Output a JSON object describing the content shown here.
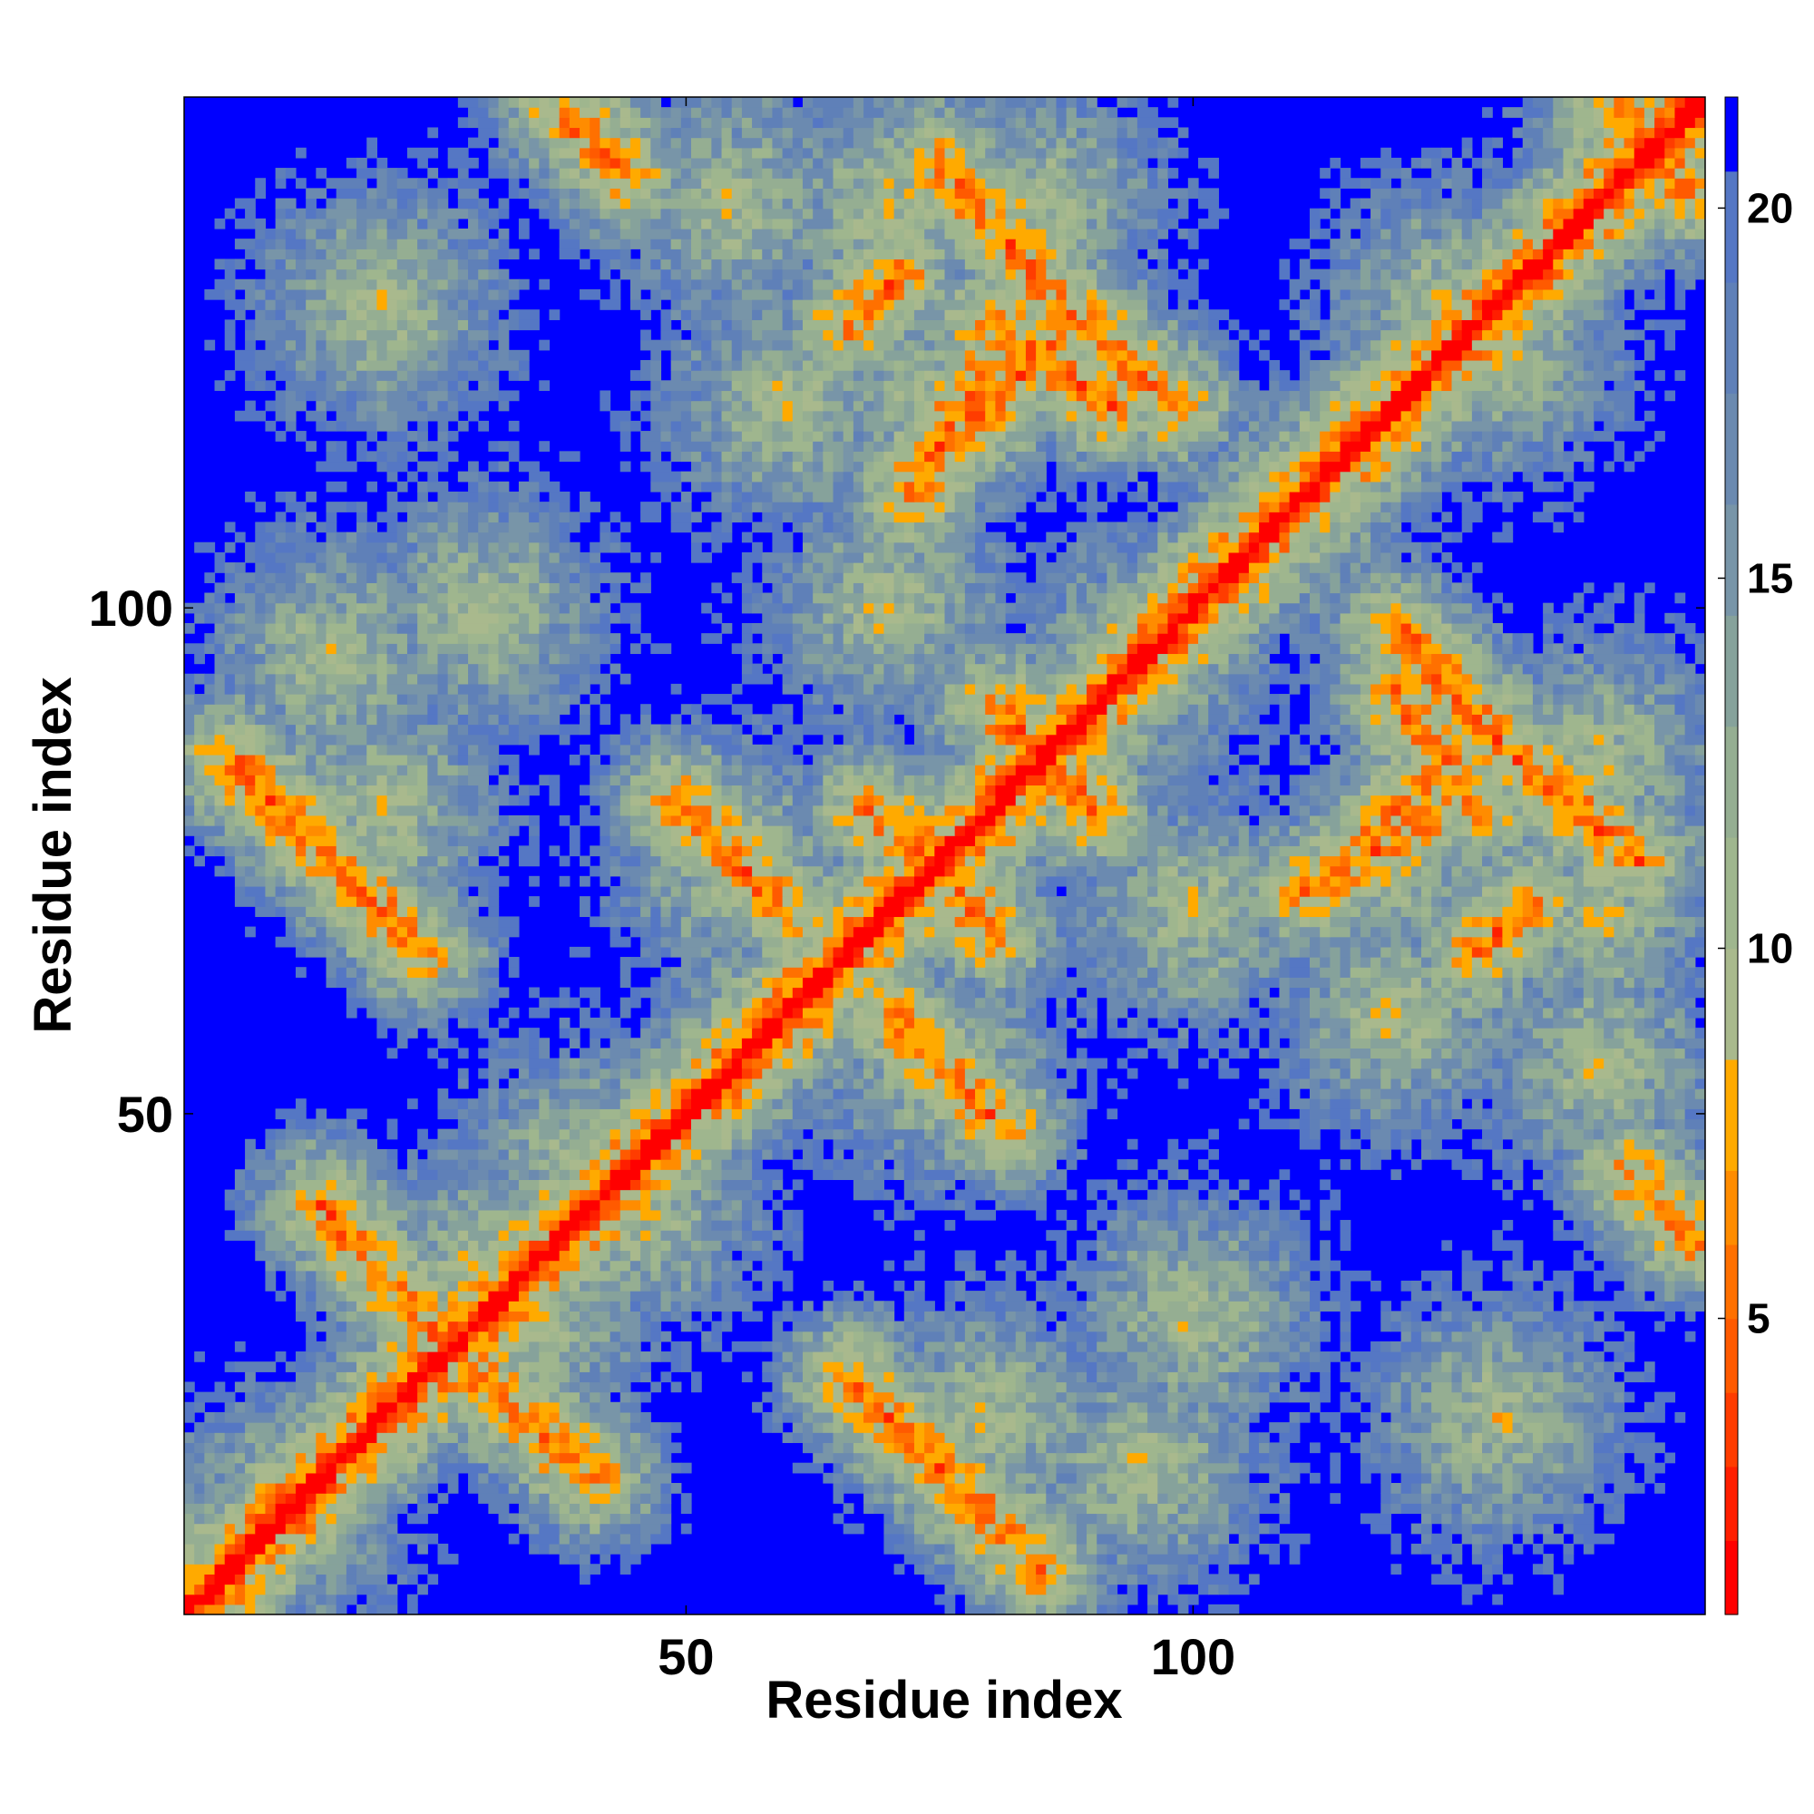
{
  "chart_data": {
    "type": "heatmap",
    "title": "",
    "xlabel": "Residue index",
    "ylabel": "Residue index",
    "n_residues": 150,
    "xlim": [
      1,
      150
    ],
    "ylim": [
      1,
      150
    ],
    "x_ticks": [
      {
        "value": 50,
        "label": "50"
      },
      {
        "value": 100,
        "label": "100"
      }
    ],
    "y_ticks": [
      {
        "value": 50,
        "label": "50"
      },
      {
        "value": 100,
        "label": "100"
      }
    ],
    "colorbar": {
      "range": [
        1,
        21.5
      ],
      "ticks": [
        {
          "value": 5,
          "label": "5"
        },
        {
          "value": 10,
          "label": "10"
        },
        {
          "value": 15,
          "label": "15"
        },
        {
          "value": 20,
          "label": "20"
        }
      ],
      "bands": [
        {
          "max": 2.0,
          "color": "#ff0000"
        },
        {
          "max": 3.0,
          "color": "#ff1e00"
        },
        {
          "max": 4.0,
          "color": "#ff3c00"
        },
        {
          "max": 5.0,
          "color": "#ff5a00"
        },
        {
          "max": 6.0,
          "color": "#ff7000"
        },
        {
          "max": 7.0,
          "color": "#ff8c00"
        },
        {
          "max": 8.5,
          "color": "#ffaa00"
        },
        {
          "max": 10.0,
          "color": "#a9b98d"
        },
        {
          "max": 11.5,
          "color": "#9fb68e"
        },
        {
          "max": 13.0,
          "color": "#95ae92"
        },
        {
          "max": 14.5,
          "color": "#86a29b"
        },
        {
          "max": 16.0,
          "color": "#7895a8"
        },
        {
          "max": 17.5,
          "color": "#6b8ab0"
        },
        {
          "max": 19.0,
          "color": "#5f80b8"
        },
        {
          "max": 20.5,
          "color": "#5577c4"
        },
        {
          "max": 99,
          "color": "#0000ff"
        }
      ]
    },
    "units": "distance",
    "description_features": {
      "diagonal": "distance near 1 along i=j",
      "contact_segments": [
        {
          "from": [
            25,
            28
          ],
          "to": [
            41,
            14
          ]
        },
        {
          "from": [
            66,
            24
          ],
          "to": [
            85,
            5
          ]
        },
        {
          "from": [
            58,
            57
          ],
          "to": [
            63,
            61
          ]
        },
        {
          "from": [
            70,
            60
          ],
          "to": [
            81,
            49
          ]
        },
        {
          "from": [
            73,
            77
          ],
          "to": [
            80,
            68
          ]
        },
        {
          "from": [
            81,
            90
          ],
          "to": [
            90,
            80
          ]
        },
        {
          "from": [
            111,
            72
          ],
          "to": [
            123,
            79
          ]
        },
        {
          "from": [
            120,
            92
          ],
          "to": [
            128,
            80
          ]
        },
        {
          "from": [
            132,
            85
          ],
          "to": [
            144,
            75
          ]
        },
        {
          "from": [
            78,
            118
          ],
          "to": [
            86,
            126
          ]
        },
        {
          "from": [
            66,
            128
          ],
          "to": [
            71,
            133
          ]
        },
        {
          "from": [
            87,
            130
          ],
          "to": [
            98,
            120
          ]
        },
        {
          "from": [
            38,
            149
          ],
          "to": [
            44,
            143
          ]
        },
        {
          "from": [
            142,
            149
          ],
          "to": [
            149,
            141
          ]
        }
      ]
    }
  }
}
